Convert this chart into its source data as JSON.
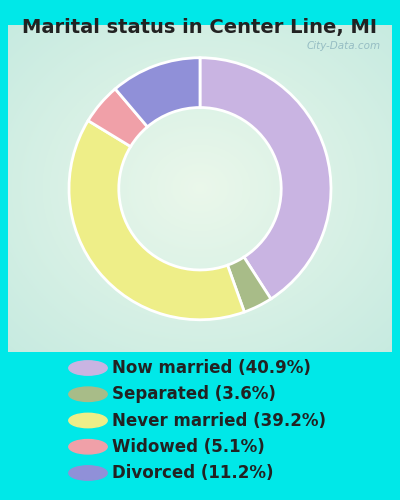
{
  "title": "Marital status in Center Line, MI",
  "slices": [
    {
      "label": "Now married (40.9%)",
      "value": 40.9,
      "color": "#c9b4e2"
    },
    {
      "label": "Separated (3.6%)",
      "value": 3.6,
      "color": "#a8bc88"
    },
    {
      "label": "Never married (39.2%)",
      "value": 39.2,
      "color": "#eeee88"
    },
    {
      "label": "Widowed (5.1%)",
      "value": 5.1,
      "color": "#f0a0a8"
    },
    {
      "label": "Divorced (11.2%)",
      "value": 11.2,
      "color": "#9090d8"
    }
  ],
  "bg_outer": "#00e8e8",
  "donut_width": 0.38,
  "title_fontsize": 14,
  "legend_fontsize": 12,
  "watermark": "City-Data.com",
  "chart_bg_colors": [
    "#e8f4ee",
    "#f4faf6"
  ],
  "startangle": 90
}
